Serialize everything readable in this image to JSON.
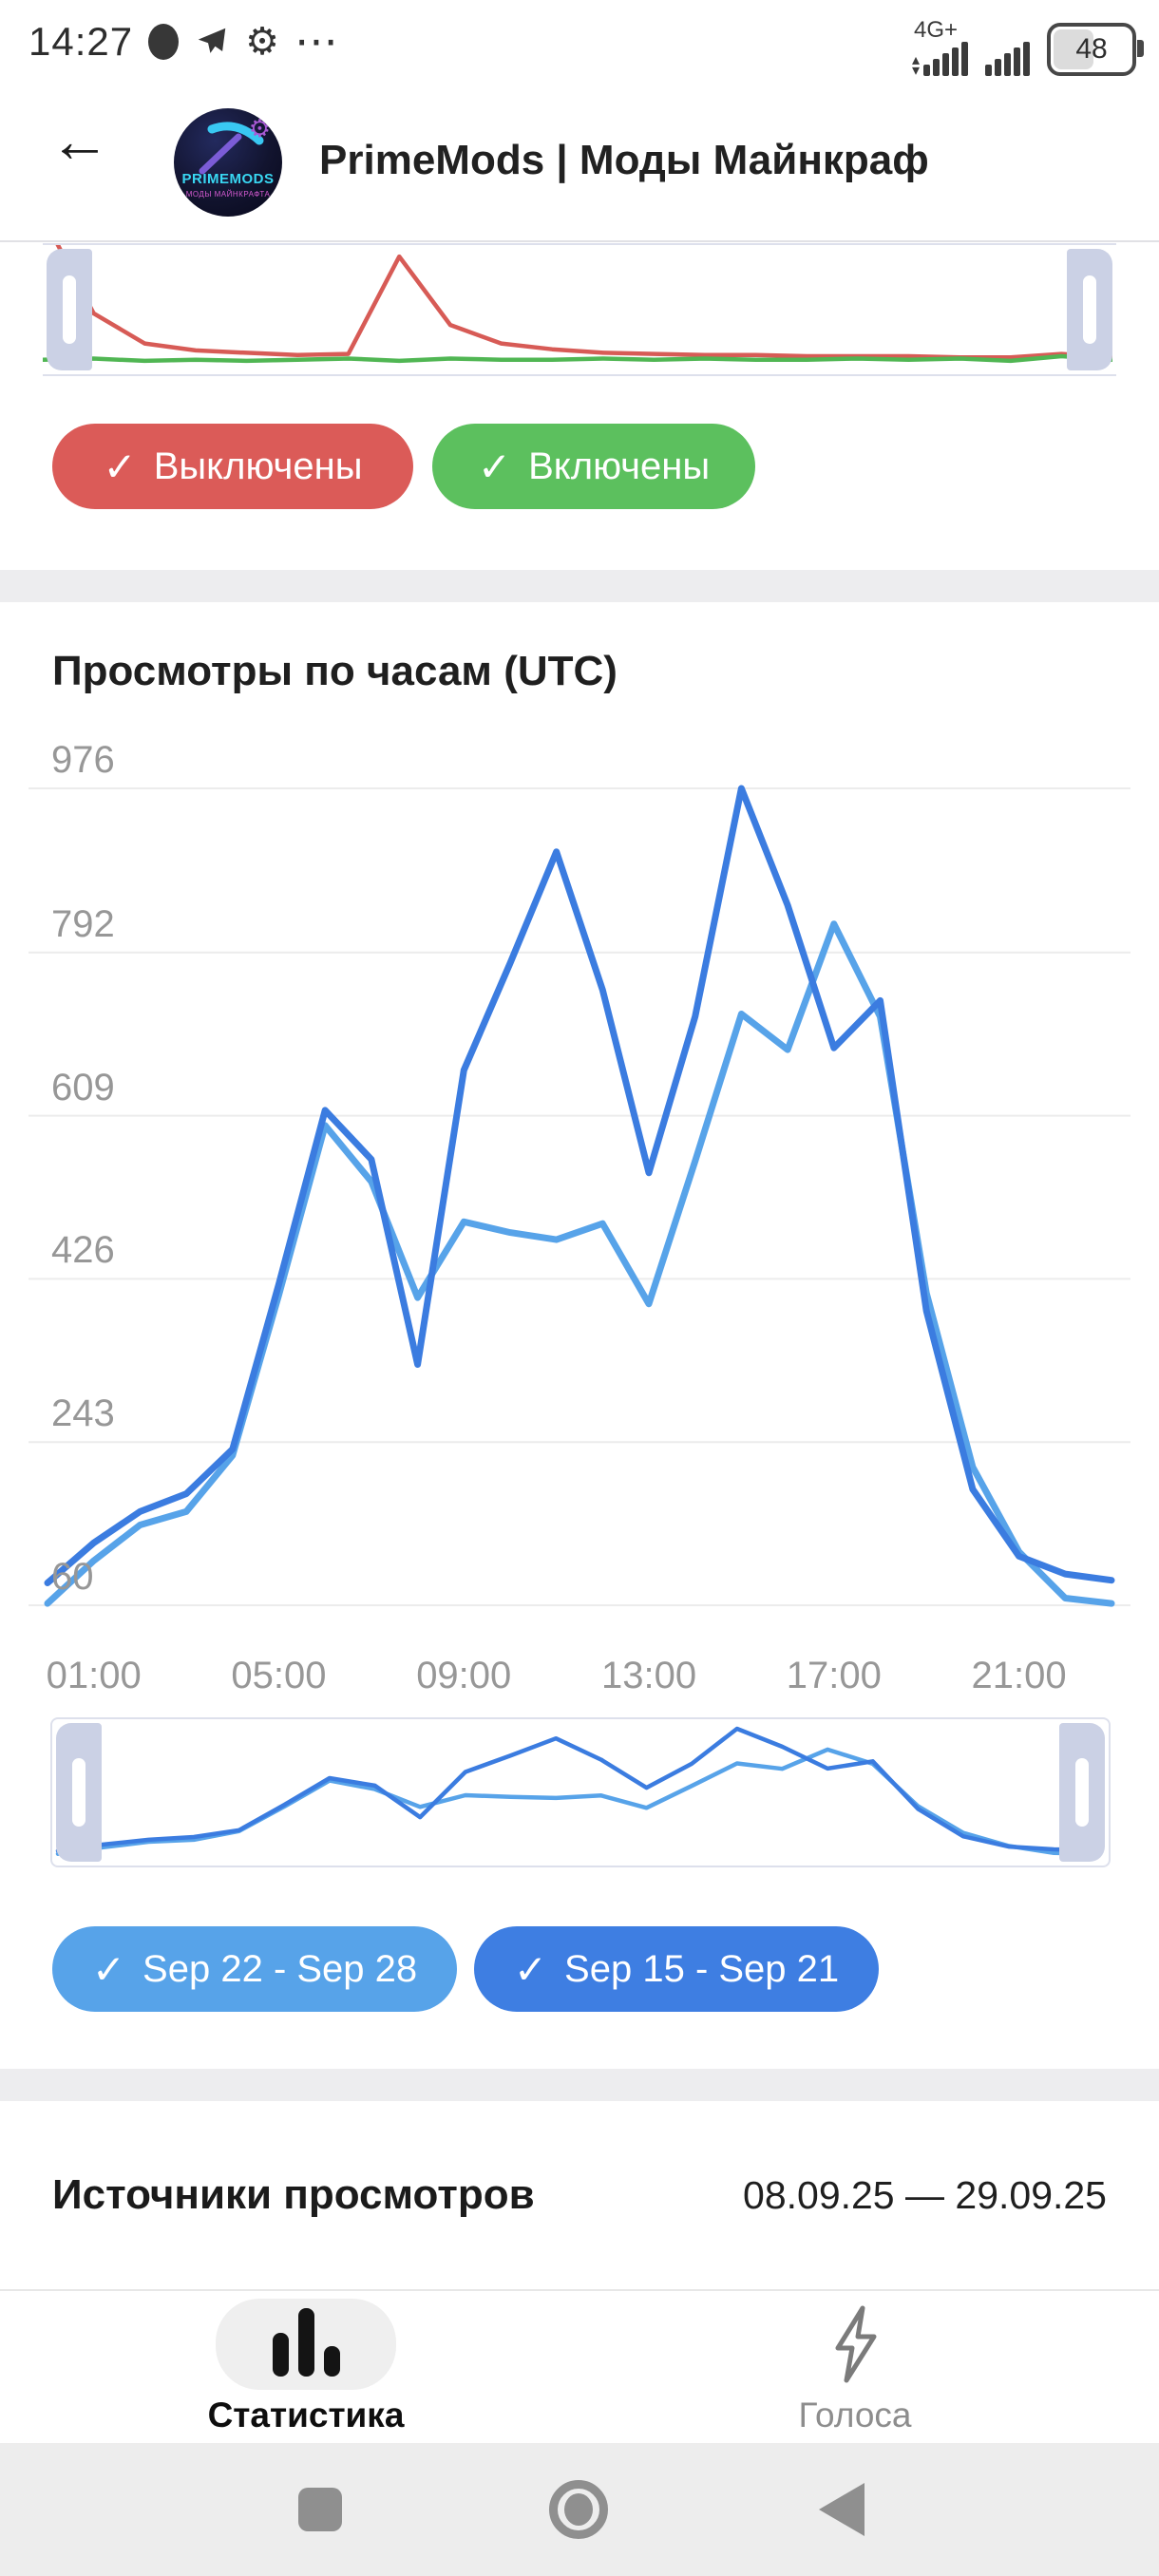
{
  "status_bar": {
    "time": "14:27",
    "network": "4G+",
    "battery_percent": "48"
  },
  "icons": {
    "check": "✓",
    "back_arrow": "←",
    "gear": "⚙",
    "more_dots": "⋯",
    "up_arrow": "▴",
    "down_arrow": "▾"
  },
  "header": {
    "title": "PrimeMods | Моды Майнкраф",
    "avatar_title": "PRIMEMODS",
    "avatar_subtitle": "МОДЫ МАЙНКРАФТА"
  },
  "notifications_section": {
    "disabled_button": {
      "label": "Выключены",
      "color": "#db5b58"
    },
    "enabled_button": {
      "label": "Включены",
      "color": "#5cc05e"
    },
    "chart_data": {
      "type": "line",
      "role": "range-selector-preview",
      "ylim": [
        0,
        100
      ],
      "legend_position": "buttons-below",
      "series": [
        {
          "name": "Выключены",
          "color": "#d75b56",
          "values": [
            130,
            46,
            20,
            14,
            12,
            10,
            11,
            95,
            36,
            20,
            15,
            12,
            11,
            10,
            10,
            9,
            9,
            9,
            8,
            8,
            11,
            8
          ]
        },
        {
          "name": "Включены",
          "color": "#50b653",
          "values": [
            6,
            7,
            5,
            6,
            5,
            6,
            7,
            5,
            7,
            6,
            6,
            7,
            6,
            7,
            6,
            6,
            7,
            6,
            7,
            5,
            9,
            6
          ]
        }
      ]
    }
  },
  "views_section": {
    "title": "Просмотры по часам (UTC)",
    "chart_data": {
      "type": "line",
      "title": "Просмотры по часам (UTC)",
      "xlabel": "",
      "ylabel": "",
      "x_unit": "hour",
      "x_range": [
        0,
        23
      ],
      "grid": true,
      "ylim": [
        60,
        976
      ],
      "y_ticks": [
        976,
        792,
        609,
        426,
        243,
        60
      ],
      "x_ticks": [
        {
          "hour": 1,
          "label": "01:00"
        },
        {
          "hour": 5,
          "label": "05:00"
        },
        {
          "hour": 9,
          "label": "09:00"
        },
        {
          "hour": 13,
          "label": "13:00"
        },
        {
          "hour": 17,
          "label": "17:00"
        },
        {
          "hour": 21,
          "label": "21:00"
        }
      ],
      "series": [
        {
          "name": "Sep 22 - Sep 28",
          "color": "#57a3e9",
          "values": [
            62,
            110,
            150,
            165,
            228,
            408,
            598,
            535,
            405,
            490,
            478,
            470,
            488,
            398,
            558,
            723,
            683,
            824,
            720,
            410,
            215,
            120,
            68,
            62
          ]
        },
        {
          "name": "Sep 15 - Sep 21",
          "color": "#3b7ce0",
          "values": [
            85,
            130,
            165,
            185,
            235,
            420,
            615,
            560,
            330,
            660,
            780,
            905,
            750,
            545,
            720,
            976,
            845,
            685,
            738,
            390,
            190,
            115,
            95,
            88
          ]
        }
      ]
    },
    "week_buttons": [
      {
        "label": "Sep 22 - Sep 28",
        "color": "#57a3e9"
      },
      {
        "label": "Sep 15 - Sep 21",
        "color": "#3e7ee2"
      }
    ]
  },
  "sources_section": {
    "title": "Источники просмотров",
    "date_range": "08.09.25 — 29.09.25"
  },
  "bottom_nav": {
    "items": [
      {
        "label": "Статистика",
        "active": true
      },
      {
        "label": "Голоса",
        "active": false
      }
    ]
  }
}
